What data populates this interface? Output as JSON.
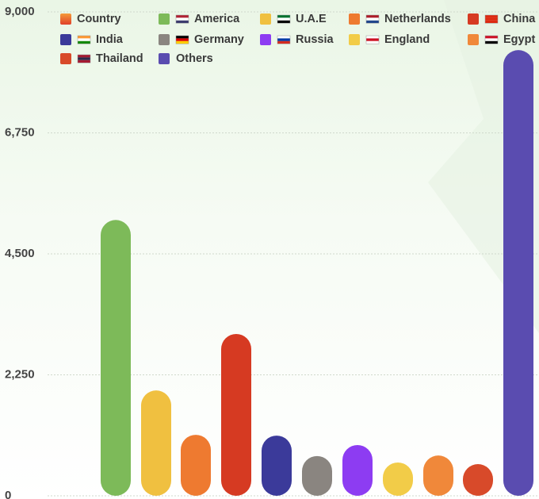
{
  "chart_data": {
    "type": "bar",
    "categories": [
      "America",
      "U.A.E",
      "Netherlands",
      "China",
      "India",
      "Germany",
      "Russia",
      "England",
      "Egypt",
      "Thailand",
      "Others"
    ],
    "series": [
      {
        "name": "Country",
        "values": [
          5130,
          1960,
          1135,
          3010,
          1120,
          740,
          945,
          620,
          750,
          590,
          8290
        ],
        "colors": [
          "#7dba59",
          "#f0c040",
          "#ee7a30",
          "#d63a22",
          "#3b3a9a",
          "#8a8580",
          "#8d3cf2",
          "#f2cc48",
          "#f0883a",
          "#d84a2a",
          "#5a4cb0"
        ]
      }
    ],
    "ylim": [
      0,
      9000
    ],
    "yticks": [
      0,
      {
        "value": 2250,
        "label": "2,250"
      },
      {
        "value": 4500,
        "label": "4,500"
      },
      {
        "value": 6750,
        "label": "6,750"
      },
      {
        "value": 9000,
        "label": "9,000"
      }
    ],
    "grid": true
  }
}
